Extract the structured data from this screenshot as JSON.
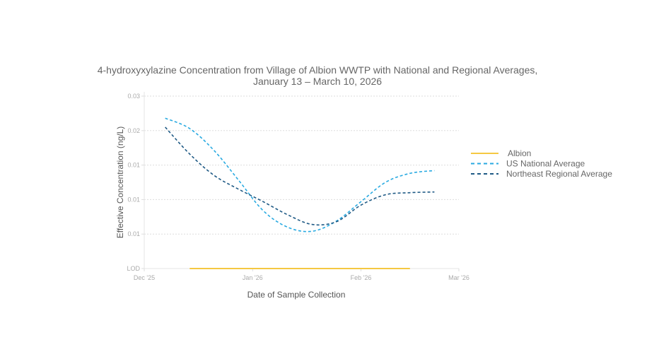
{
  "chart_data": {
    "type": "line",
    "title": "4-hydroxyxylazine Concentration from Village of Albion WWTP with National and Regional Averages,",
    "subtitle": "January 13 – March 10, 2026",
    "xlabel": "Date of Sample Collection",
    "ylabel": "Effective Concentration (ng/L)",
    "x_ticks": [
      {
        "date": "2025-12-01",
        "label": "Dec '25"
      },
      {
        "date": "2026-01-01",
        "label": "Jan '26"
      },
      {
        "date": "2026-02-01",
        "label": "Feb '26"
      },
      {
        "date": "2026-03-01",
        "label": "Mar '26"
      }
    ],
    "y_ticks": [
      {
        "value": 0.005,
        "label": "LOD"
      },
      {
        "value": 0.01,
        "label": "0.01"
      },
      {
        "value": 0.015,
        "label": "0.01"
      },
      {
        "value": 0.02,
        "label": "0.01"
      },
      {
        "value": 0.025,
        "label": "0.02"
      },
      {
        "value": 0.03,
        "label": "0.03"
      }
    ],
    "ylim": [
      0.005,
      0.03
    ],
    "xlim": [
      "2025-12-01",
      "2026-03-01"
    ],
    "grid": "horizontal dotted",
    "legend_position": "right",
    "series": [
      {
        "name": "Albion",
        "color": "#f5c842",
        "dash": "solid",
        "x": [
          "2025-12-14",
          "2026-02-15"
        ],
        "y": [
          0.005,
          0.005
        ]
      },
      {
        "name": "US National Average",
        "color": "#29aae1",
        "dash": "dashed",
        "x": [
          "2025-12-07",
          "2025-12-14",
          "2025-12-21",
          "2025-12-28",
          "2026-01-04",
          "2026-01-11",
          "2026-01-18",
          "2026-01-25",
          "2026-02-01",
          "2026-02-08",
          "2026-02-15",
          "2026-02-22"
        ],
        "y": [
          0.0268,
          0.0253,
          0.0221,
          0.0178,
          0.0134,
          0.011,
          0.0104,
          0.0119,
          0.0147,
          0.0175,
          0.0188,
          0.0192
        ]
      },
      {
        "name": "Northeast Regional Average",
        "color": "#1f5a85",
        "dash": "dashed",
        "x": [
          "2025-12-07",
          "2025-12-14",
          "2025-12-21",
          "2025-12-28",
          "2026-01-04",
          "2026-01-11",
          "2026-01-18",
          "2026-01-25",
          "2026-02-01",
          "2026-02-08",
          "2026-02-15",
          "2026-02-22"
        ],
        "y": [
          0.0255,
          0.0216,
          0.0185,
          0.0165,
          0.0147,
          0.0128,
          0.0114,
          0.0118,
          0.0142,
          0.0157,
          0.016,
          0.0161
        ]
      }
    ]
  }
}
